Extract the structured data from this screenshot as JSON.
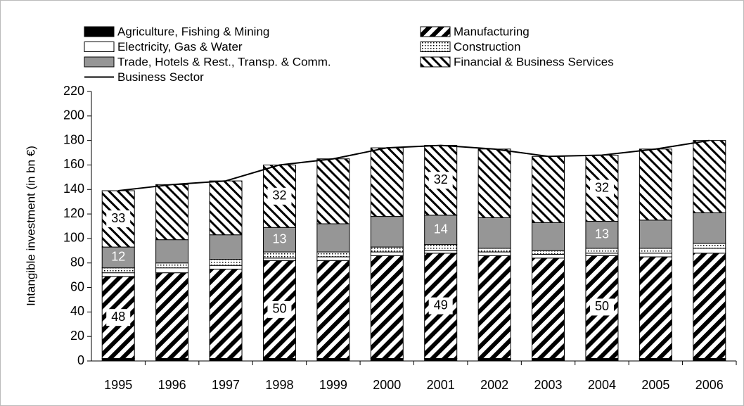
{
  "chart_data": {
    "type": "bar",
    "stacked": true,
    "y_label": "Intangible investment (in bn €)",
    "categories": [
      "1995",
      "1996",
      "1997",
      "1998",
      "1999",
      "2000",
      "2001",
      "2002",
      "2003",
      "2004",
      "2005",
      "2006"
    ],
    "series": [
      {
        "name": "Agriculture, Fishing & Mining",
        "color": "#000000",
        "pattern": "solid",
        "values": [
          2,
          2,
          2,
          2,
          2,
          2,
          2,
          2,
          2,
          2,
          2,
          2
        ]
      },
      {
        "name": "Manufacturing",
        "color": "#000000",
        "pattern": "backslash",
        "values": [
          67,
          70,
          73,
          80,
          80,
          84,
          86,
          84,
          82,
          84,
          83,
          86
        ],
        "shares": [
          48,
          null,
          null,
          50,
          null,
          null,
          49,
          null,
          null,
          50,
          null,
          null
        ]
      },
      {
        "name": "Electricity, Gas & Water",
        "color": "#ffffff",
        "pattern": "solid",
        "values": [
          3,
          4,
          3,
          2,
          3,
          3,
          2,
          3,
          3,
          2,
          3,
          4
        ]
      },
      {
        "name": "Construction",
        "color": "#000000",
        "pattern": "dots",
        "values": [
          4,
          4,
          5,
          5,
          4,
          4,
          5,
          3,
          3,
          4,
          4,
          4
        ]
      },
      {
        "name": "Trade, Hotels & Rest., Transp. & Comm.",
        "color": "#969696",
        "pattern": "solid",
        "values": [
          17,
          19,
          20,
          20,
          23,
          25,
          24,
          25,
          23,
          22,
          23,
          25
        ],
        "shares": [
          12,
          null,
          null,
          13,
          null,
          null,
          14,
          null,
          null,
          13,
          null,
          null
        ]
      },
      {
        "name": "Financial & Business Services",
        "color": "#000000",
        "pattern": "slash",
        "values": [
          46,
          45,
          44,
          51,
          53,
          56,
          57,
          56,
          54,
          54,
          58,
          59
        ],
        "shares": [
          33,
          null,
          null,
          32,
          null,
          null,
          32,
          null,
          null,
          32,
          null,
          null
        ]
      },
      {
        "name": "Business Sector",
        "type": "line",
        "color": "#000000",
        "values": [
          139,
          144,
          147,
          160,
          165,
          174,
          176,
          173,
          167,
          168,
          173,
          180
        ]
      }
    ],
    "ylim": [
      0,
      220
    ],
    "yticks": [
      0,
      20,
      40,
      60,
      80,
      100,
      120,
      140,
      160,
      180,
      200,
      220
    ],
    "grid": false
  }
}
